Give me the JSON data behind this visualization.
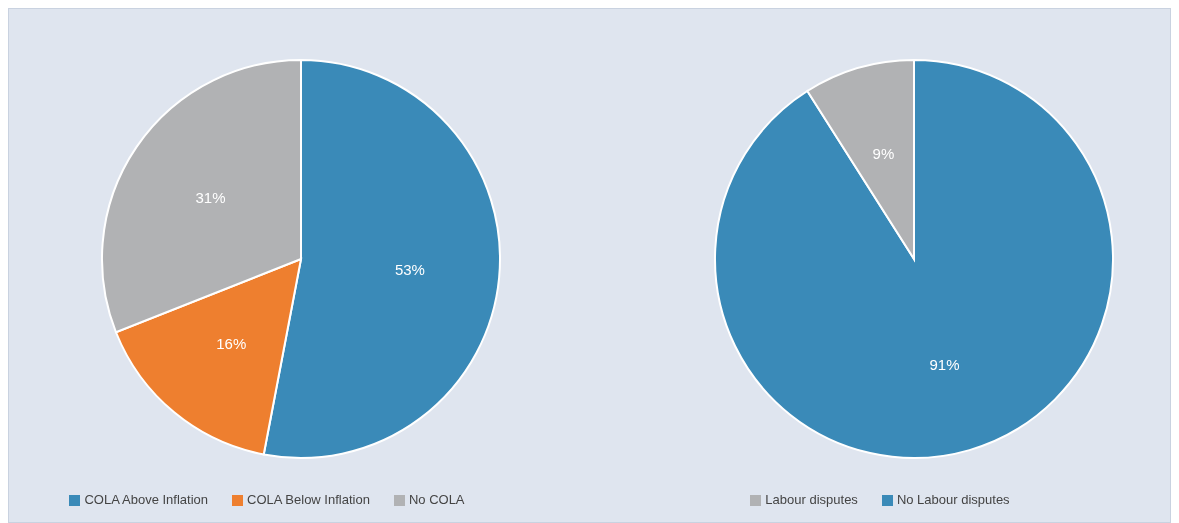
{
  "chart_data": [
    {
      "type": "pie",
      "categories": [
        "COLA Above Inflation",
        "COLA Below Inflation",
        "No COLA"
      ],
      "values": [
        53,
        16,
        31
      ],
      "colors": [
        "#3a8ab8",
        "#ee7f2f",
        "#b1b2b4"
      ],
      "value_labels": [
        "53%",
        "16%",
        "31%"
      ],
      "legend": "bottom"
    },
    {
      "type": "pie",
      "categories": [
        "No Labour disputes",
        "Labour disputes"
      ],
      "values": [
        91,
        9
      ],
      "colors": [
        "#3a8ab8",
        "#b1b2b4"
      ],
      "value_labels": [
        "91%",
        "9%"
      ],
      "legend": "bottom"
    }
  ]
}
